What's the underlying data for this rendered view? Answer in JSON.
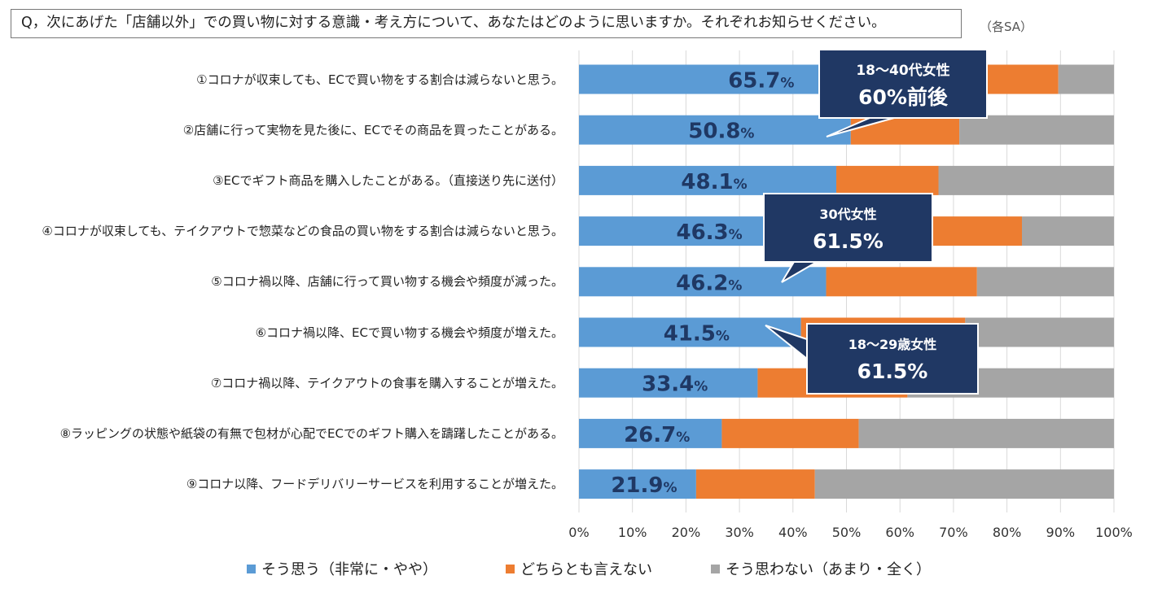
{
  "question": {
    "text": "Q，次にあげた「店舗以外」での買い物に対する意識・考え方について、あなたはどのように思いますか。それぞれお知らせください。",
    "note": "（各SA）"
  },
  "colors": {
    "agree": "#5b9bd5",
    "neutral": "#ed7d31",
    "disagree": "#a5a5a5",
    "callout": "#203864",
    "value_text": "#1f3864"
  },
  "chart_data": {
    "type": "bar",
    "orientation": "horizontal",
    "stacked": true,
    "xlim": [
      0,
      100
    ],
    "x_ticks": [
      "0%",
      "10%",
      "20%",
      "30%",
      "40%",
      "50%",
      "60%",
      "70%",
      "80%",
      "90%",
      "100%"
    ],
    "grid": true,
    "legend_position": "bottom",
    "categories": [
      "①コロナが収束しても、ECで買い物をする割合は減らないと思う。",
      "②店舗に行って実物を見た後に、ECでその商品を買ったことがある。",
      "③ECでギフト商品を購入したことがある。（直接送り先に送付）",
      "④コロナが収束しても、テイクアウトで惣菜などの食品の買い物をする割合は減らないと思う。",
      "⑤コロナ禍以降、店舗に行って買い物する機会や頻度が減った。",
      "⑥コロナ禍以降、ECで買い物する機会や頻度が増えた。",
      "⑦コロナ禍以降、テイクアウトの食事を購入することが増えた。",
      "⑧ラッピングの状態や紙袋の有無で包材が心配でECでのギフト購入を躊躇したことがある。",
      "⑨コロナ以降、フードデリバリーサービスを利用することが増えた。"
    ],
    "series": [
      {
        "name": "そう思う（非常に・やや）",
        "values": [
          65.7,
          50.8,
          48.1,
          46.3,
          46.2,
          41.5,
          33.4,
          26.7,
          21.9
        ]
      },
      {
        "name": "どちらとも言えない",
        "values": [
          23.9,
          20.3,
          19.1,
          36.5,
          28.2,
          30.7,
          28.0,
          25.6,
          22.2
        ]
      },
      {
        "name": "そう思わない（あまり・全く）",
        "values": [
          10.4,
          28.9,
          32.8,
          17.2,
          25.6,
          27.8,
          38.6,
          47.7,
          55.9
        ]
      }
    ],
    "value_labels": [
      "65.7",
      "50.8",
      "48.1",
      "46.3",
      "46.2",
      "41.5",
      "33.4",
      "26.7",
      "21.9"
    ],
    "value_label_unit": "%",
    "callouts": [
      {
        "line1": "18～40代女性",
        "line2": "60%前後",
        "row": 0
      },
      {
        "line1": "30代女性",
        "line2": "61.5%",
        "row": 3
      },
      {
        "line1": "18～29歳女性",
        "line2": "61.5%",
        "row": 5
      }
    ]
  }
}
